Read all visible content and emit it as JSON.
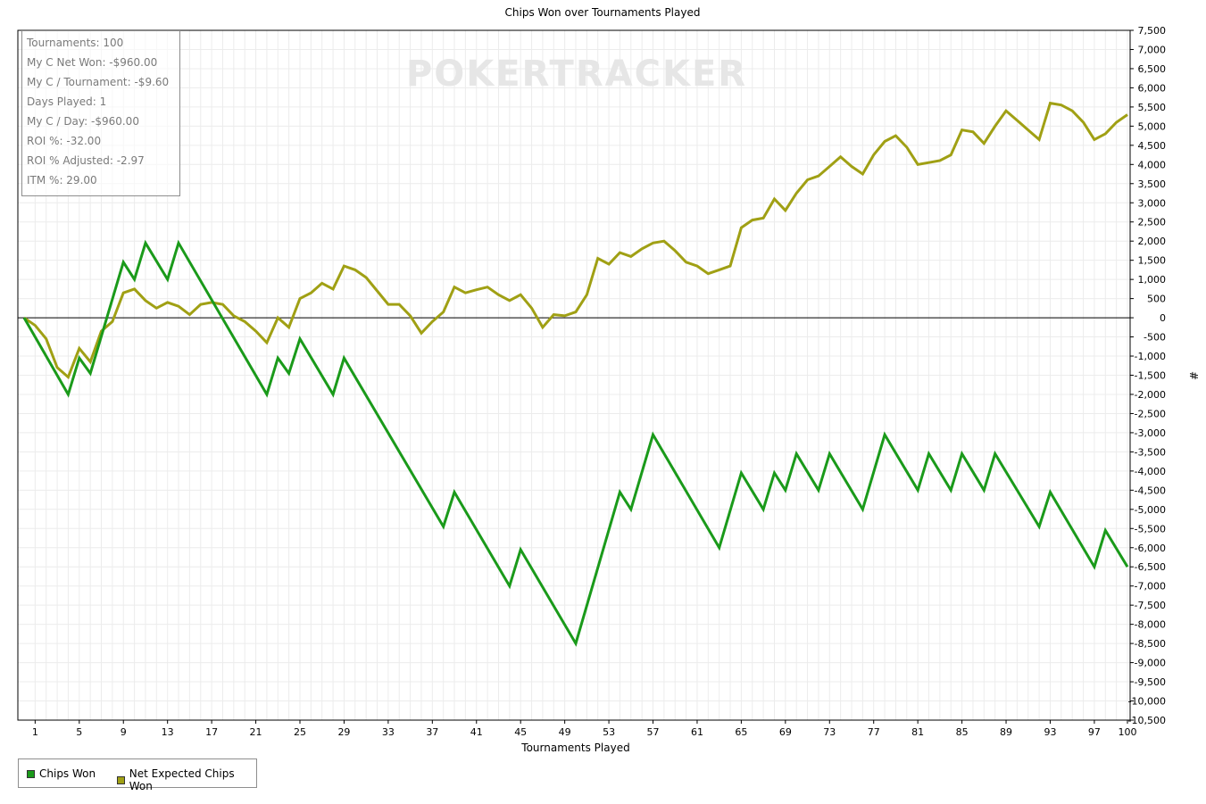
{
  "chart_data": {
    "type": "line",
    "title": "Chips Won over Tournaments Played",
    "xlabel": "Tournaments Played",
    "ylabel": "#",
    "watermark": "POKERTRACKER",
    "xlim": [
      0,
      100
    ],
    "ylim": [
      -10500,
      7500
    ],
    "xticks": [
      1,
      5,
      9,
      13,
      17,
      21,
      25,
      29,
      33,
      37,
      41,
      45,
      49,
      53,
      57,
      61,
      65,
      69,
      73,
      77,
      81,
      85,
      89,
      93,
      97,
      100
    ],
    "ytick_step": 500,
    "grid": true,
    "legend_position": "bottom-left",
    "zero_line": true,
    "colors": {
      "chips_won": "#1a9a1a",
      "net_expected": "#a0a014",
      "grid": "#ececec",
      "axis": "#000000"
    },
    "series": [
      {
        "name": "Chips Won",
        "x": [
          0,
          4,
          5,
          6,
          9,
          10,
          11,
          13,
          14,
          22,
          23,
          24,
          25,
          28,
          29,
          38,
          39,
          44,
          45,
          50,
          54,
          55,
          57,
          63,
          65,
          67,
          68,
          69,
          70,
          72,
          73,
          76,
          78,
          81,
          82,
          84,
          85,
          87,
          88,
          92,
          93,
          97,
          98,
          100
        ],
        "values": [
          0,
          -2000,
          -1050,
          -1450,
          1450,
          1000,
          1950,
          1000,
          1950,
          -2000,
          -1050,
          -1450,
          -550,
          -2000,
          -1050,
          -5450,
          -4550,
          -7000,
          -6050,
          -8500,
          -4550,
          -5000,
          -3050,
          -6000,
          -4050,
          -5000,
          -4050,
          -4500,
          -3550,
          -4500,
          -3550,
          -5000,
          -3050,
          -4500,
          -3550,
          -4500,
          -3550,
          -4500,
          -3550,
          -5450,
          -4550,
          -6500,
          -5550,
          -6500
        ]
      },
      {
        "name": "Net Expected Chips Won",
        "x": [
          0,
          1,
          2,
          3,
          4,
          5,
          6,
          7,
          8,
          9,
          10,
          11,
          12,
          13,
          14,
          15,
          16,
          17,
          18,
          19,
          20,
          21,
          22,
          23,
          24,
          25,
          26,
          27,
          28,
          29,
          30,
          31,
          32,
          33,
          34,
          35,
          36,
          37,
          38,
          39,
          40,
          41,
          42,
          43,
          44,
          45,
          46,
          47,
          48,
          49,
          50,
          51,
          52,
          53,
          54,
          55,
          56,
          57,
          58,
          59,
          60,
          61,
          62,
          63,
          64,
          65,
          66,
          67,
          68,
          69,
          70,
          71,
          72,
          73,
          74,
          75,
          76,
          77,
          78,
          79,
          80,
          81,
          82,
          83,
          84,
          85,
          86,
          87,
          88,
          89,
          90,
          91,
          92,
          93,
          94,
          95,
          96,
          97,
          98,
          99,
          100
        ],
        "values": [
          0,
          -200,
          -550,
          -1300,
          -1550,
          -800,
          -1150,
          -350,
          -100,
          650,
          750,
          450,
          250,
          400,
          300,
          80,
          350,
          400,
          350,
          50,
          -100,
          -350,
          -650,
          0,
          -250,
          500,
          650,
          900,
          750,
          1350,
          1250,
          1050,
          700,
          350,
          350,
          50,
          -400,
          -100,
          150,
          800,
          650,
          730,
          800,
          600,
          450,
          600,
          250,
          -250,
          80,
          50,
          150,
          600,
          1550,
          1400,
          1700,
          1600,
          1800,
          1950,
          2000,
          1750,
          1450,
          1350,
          1150,
          1250,
          1350,
          2350,
          2550,
          2600,
          3100,
          2800,
          3250,
          3600,
          3700,
          3950,
          4200,
          3950,
          3750,
          4250,
          4600,
          4750,
          4450,
          4000,
          4050,
          4100,
          4250,
          4900,
          4850,
          4550,
          5000,
          5400,
          5150,
          4900,
          4650,
          5600,
          5550,
          5400,
          5100,
          4650,
          4800,
          5100,
          5300
        ]
      }
    ]
  },
  "stats": [
    "Tournaments: 100",
    "My C Net Won: -$960.00",
    "My C / Tournament: -$9.60",
    "Days Played: 1",
    "My C / Day: -$960.00",
    "ROI %: -32.00",
    "ROI % Adjusted: -2.97",
    "ITM %: 29.00"
  ]
}
